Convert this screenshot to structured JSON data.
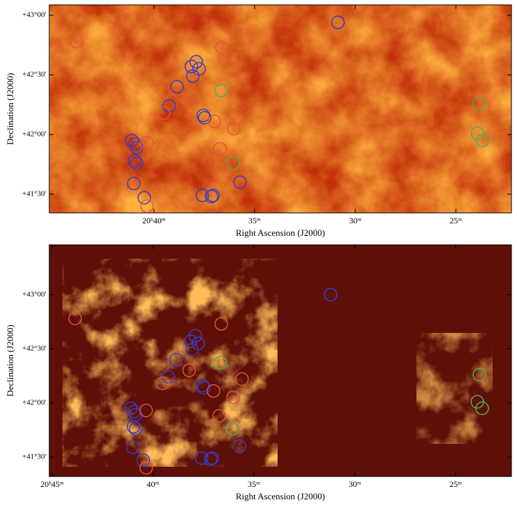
{
  "chart_data": [
    {
      "type": "image",
      "xlabel": "Right Ascension (J2000)",
      "ylabel": "Declination (J2000)",
      "xlim": [
        45.2,
        22.24
      ],
      "ylim": [
        41.343,
        43.087
      ],
      "xticks": [
        {
          "value": 40,
          "label": "20ʰ40ᵐ"
        },
        {
          "value": 35,
          "label": "35ᵐ"
        },
        {
          "value": 30,
          "label": "30ᵐ"
        },
        {
          "value": 25,
          "label": "25ᵐ"
        }
      ],
      "yticks": [
        {
          "value": 43,
          "label": "+43°00′"
        },
        {
          "value": 42.5,
          "label": "+42°30′"
        },
        {
          "value": 42,
          "label": "+42°00′"
        },
        {
          "value": 41.5,
          "label": "+41°30′"
        }
      ],
      "series": [
        {
          "color": "#3c3cc0",
          "x": [
            30.86,
            37.9,
            38.14,
            37.76,
            38.07,
            38.86,
            39.24,
            37.55,
            37.48,
            41.1,
            40.93,
            40.86,
            40.97,
            40.86,
            41.0,
            40.48,
            37.59,
            37.07,
            37.14,
            35.72
          ],
          "values": [
            42.94,
            42.61,
            42.57,
            42.55,
            42.49,
            42.4,
            42.24,
            42.16,
            42.14,
            41.95,
            41.92,
            41.89,
            41.78,
            41.76,
            41.59,
            41.47,
            41.49,
            41.49,
            41.48,
            41.6
          ]
        },
        {
          "color": "#4caf50",
          "x": [
            36.66,
            23.83,
            23.93,
            23.69,
            36.07
          ],
          "values": [
            42.37,
            42.26,
            42.01,
            41.95,
            41.76
          ]
        },
        {
          "color": "#e8503a",
          "x": [
            43.86,
            36.62,
            35.59,
            39.52,
            38.21,
            37.0,
            36.03,
            36.72,
            40.34,
            40.34
          ],
          "values": [
            42.78,
            42.73,
            42.22,
            42.18,
            42.3,
            42.11,
            42.05,
            41.88,
            41.93,
            41.4
          ]
        }
      ]
    },
    {
      "type": "image",
      "xlabel": "Right Ascension (J2000)",
      "ylabel": "Declination (J2000)",
      "xlim": [
        45.14,
        22.24
      ],
      "ylim": [
        41.32,
        43.46
      ],
      "xticks": [
        {
          "value": 45,
          "label": "20ʰ45ᵐ"
        },
        {
          "value": 40,
          "label": "40ᵐ"
        },
        {
          "value": 35,
          "label": "35ᵐ"
        },
        {
          "value": 30,
          "label": "30ᵐ"
        },
        {
          "value": 25,
          "label": "25ᵐ"
        }
      ],
      "yticks": [
        {
          "value": 43,
          "label": "+43°00′"
        },
        {
          "value": 42.5,
          "label": "+42°30′"
        },
        {
          "value": 42,
          "label": "+42°00′"
        },
        {
          "value": 41.5,
          "label": "+41°30′"
        }
      ],
      "series": [
        {
          "color": "#3c3cc0",
          "x": [
            31.2,
            37.9,
            38.14,
            37.76,
            38.07,
            38.86,
            39.24,
            37.55,
            37.48,
            41.1,
            40.93,
            40.86,
            40.97,
            40.86,
            41.0,
            40.48,
            37.59,
            37.07,
            37.14,
            35.72
          ],
          "values": [
            43.0,
            42.62,
            42.57,
            42.55,
            42.49,
            42.4,
            42.24,
            42.16,
            42.14,
            41.95,
            41.92,
            41.89,
            41.78,
            41.76,
            41.59,
            41.47,
            41.49,
            41.49,
            41.48,
            41.6
          ]
        },
        {
          "color": "#4caf50",
          "x": [
            36.66,
            23.83,
            23.93,
            23.69,
            36.07
          ],
          "values": [
            42.37,
            42.26,
            42.01,
            41.95,
            41.76
          ]
        },
        {
          "color": "#e8503a",
          "x": [
            43.86,
            36.62,
            35.59,
            39.52,
            38.21,
            37.0,
            36.03,
            36.72,
            40.34,
            40.34
          ],
          "values": [
            42.78,
            42.73,
            42.22,
            42.18,
            42.3,
            42.11,
            42.05,
            41.88,
            41.93,
            41.4
          ]
        }
      ]
    }
  ]
}
